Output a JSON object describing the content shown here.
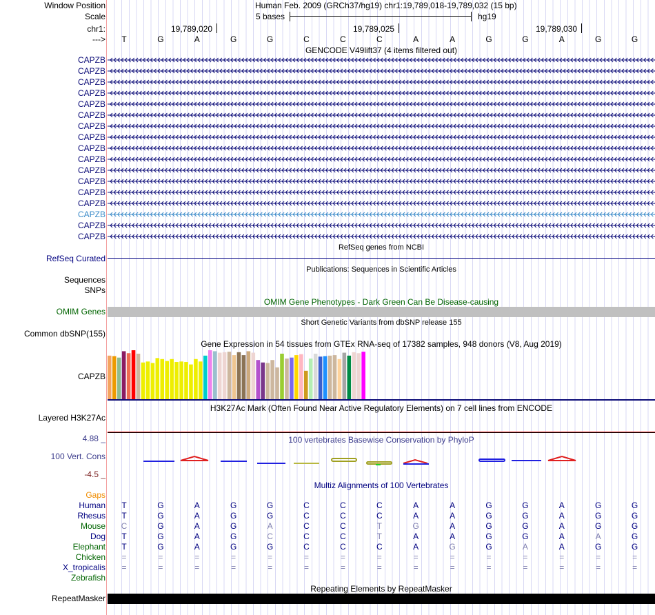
{
  "ruler": {
    "window_position_label": "Window Position",
    "window_position_value": "Human Feb. 2009 (GRCh37/hg19)   chr1:19,789,018-19,789,032 (15 bp)",
    "scale_label": "Scale",
    "scale_value": "5 bases",
    "scale_assembly": "hg19",
    "chrom_label": "chr1:",
    "ticks": [
      "19,789,020",
      "19,789,025",
      "19,789,030"
    ],
    "strand_label": "--->",
    "bases": [
      "T",
      "G",
      "A",
      "G",
      "G",
      "C",
      "C",
      "C",
      "A",
      "A",
      "G",
      "G",
      "A",
      "G",
      "G"
    ]
  },
  "gencode": {
    "title": "GENCODE V49lift37 (4 items filtered out)",
    "items": [
      "CAPZB",
      "CAPZB",
      "CAPZB",
      "CAPZB",
      "CAPZB",
      "CAPZB",
      "CAPZB",
      "CAPZB",
      "CAPZB",
      "CAPZB",
      "CAPZB",
      "CAPZB",
      "CAPZB",
      "CAPZB",
      "CAPZB",
      "CAPZB",
      "CAPZB"
    ],
    "highlight_index": 14,
    "color": "#0c0c78",
    "highlight_color": "#3a8ac8"
  },
  "refseq": {
    "title": "RefSeq genes from NCBI",
    "label": "RefSeq Curated"
  },
  "publications": {
    "title": "Publications: Sequences in Scientific Articles",
    "labels": [
      "Sequences",
      "SNPs"
    ]
  },
  "omim": {
    "title": "OMIM Gene Phenotypes - Dark Green Can Be Disease-causing",
    "label": "OMIM Genes"
  },
  "dbsnp": {
    "title": "Short Genetic Variants from dbSNP release 155",
    "label": "Common dbSNP(155)"
  },
  "gtex": {
    "title": "Gene Expression in 54 tissues from GTEx RNA-seq of 17382 samples, 948 donors (V8, Aug 2019)",
    "label": "CAPZB",
    "relative_levels": [
      0.89,
      0.88,
      0.85,
      0.98,
      0.94,
      1.0,
      0.93,
      0.75,
      0.77,
      0.74,
      0.84,
      0.82,
      0.78,
      0.82,
      0.76,
      0.77,
      0.76,
      0.71,
      0.82,
      0.77,
      0.89,
      1.0,
      0.98,
      0.95,
      0.96,
      0.97,
      0.9,
      0.96,
      0.9,
      0.98,
      0.95,
      0.8,
      0.75,
      0.74,
      0.8,
      0.65,
      0.93,
      0.83,
      0.85,
      0.9,
      0.92,
      0.58,
      0.83,
      0.93,
      0.87,
      0.88,
      0.89,
      0.9,
      0.82,
      0.95,
      0.89,
      0.96,
      0.94,
      0.97
    ],
    "colors": [
      "#F4A460",
      "#EE9A00",
      "#8FBC8F",
      "#8B1C62",
      "#EE6A50",
      "#FF0000",
      "#CDB79E",
      "#EEEE00",
      "#EEEE00",
      "#EEEE00",
      "#EEEE00",
      "#EEEE00",
      "#EEEE00",
      "#EEEE00",
      "#EEEE00",
      "#EEEE00",
      "#EEEE00",
      "#EEEE00",
      "#EEEE00",
      "#EEEE00",
      "#00CDCD",
      "#EE82EE",
      "#9AC0CD",
      "#EED5D2",
      "#EED5D2",
      "#CDB79E",
      "#EEC591",
      "#8B7355",
      "#8B7355",
      "#CDAA7D",
      "#EED5D2",
      "#B452CD",
      "#7A378B",
      "#CDB79E",
      "#CDB79E",
      "#CDB79E",
      "#9ACD32",
      "#CDB79E",
      "#7B68EE",
      "#FFD700",
      "#FFB6C1",
      "#CD9B1D",
      "#B4EEB4",
      "#D9D9D9",
      "#3A5FCD",
      "#1E90FF",
      "#CDB79E",
      "#CDB79E",
      "#FFD39B",
      "#A6A6A6",
      "#008B45",
      "#EED5D2",
      "#EED5D2",
      "#FF00FF"
    ]
  },
  "h3k27ac": {
    "title": "H3K27Ac Mark (Often Found Near Active Regulatory Elements) on 7 cell lines from ENCODE",
    "label": "Layered H3K27Ac"
  },
  "phylop": {
    "title": "100 vertebrates Basewise Conservation by PhyloP",
    "label": "100 Vert. Cons",
    "max_label": "4.88 _",
    "min_label": "-4.5 _"
  },
  "multiz": {
    "title": "Multiz Alignments of 100 Vertebrates",
    "gaps_label": "Gaps",
    "species": [
      {
        "name": "Human",
        "color": "#000080",
        "bases": [
          "T",
          "G",
          "A",
          "G",
          "G",
          "C",
          "C",
          "C",
          "A",
          "A",
          "G",
          "G",
          "A",
          "G",
          "G"
        ],
        "faint": []
      },
      {
        "name": "Rhesus",
        "color": "#000080",
        "bases": [
          "T",
          "G",
          "A",
          "G",
          "G",
          "C",
          "C",
          "C",
          "A",
          "A",
          "G",
          "G",
          "A",
          "G",
          "G"
        ],
        "faint": []
      },
      {
        "name": "Mouse",
        "color": "#006400",
        "bases": [
          "C",
          "G",
          "A",
          "G",
          "A",
          "C",
          "C",
          "T",
          "G",
          "A",
          "G",
          "G",
          "A",
          "G",
          "G"
        ],
        "faint": [
          0,
          4,
          7,
          8
        ]
      },
      {
        "name": "Dog",
        "color": "#000080",
        "bases": [
          "T",
          "G",
          "A",
          "G",
          "C",
          "C",
          "C",
          "T",
          "A",
          "A",
          "G",
          "G",
          "A",
          "A",
          "G"
        ],
        "faint": [
          4,
          7,
          13
        ]
      },
      {
        "name": "Elephant",
        "color": "#006400",
        "bases": [
          "T",
          "G",
          "A",
          "G",
          "G",
          "C",
          "C",
          "C",
          "A",
          "G",
          "G",
          "A",
          "A",
          "G",
          "G"
        ],
        "faint": [
          9,
          11
        ]
      },
      {
        "name": "Chicken",
        "color": "#006400",
        "bases": [
          "=",
          "=",
          "=",
          "=",
          "=",
          "=",
          "=",
          "=",
          "=",
          "=",
          "=",
          "=",
          "=",
          "=",
          "="
        ],
        "faint": [
          0,
          1,
          2,
          3,
          4,
          5,
          6,
          7,
          8,
          9,
          10,
          11,
          12,
          13,
          14
        ]
      },
      {
        "name": "X_tropicalis",
        "color": "#000080",
        "bases": [
          "=",
          "=",
          "=",
          "=",
          "=",
          "=",
          "=",
          "=",
          "=",
          "=",
          "=",
          "=",
          "=",
          "=",
          "="
        ],
        "faint": [
          0,
          1,
          2,
          3,
          4,
          5,
          6,
          7,
          8,
          9,
          10,
          11,
          12,
          13,
          14
        ]
      },
      {
        "name": "Zebrafish",
        "color": "#006400",
        "bases": [],
        "faint": []
      }
    ]
  },
  "repeatmasker": {
    "title": "Repeating Elements by RepeatMasker",
    "label": "RepeatMasker"
  }
}
